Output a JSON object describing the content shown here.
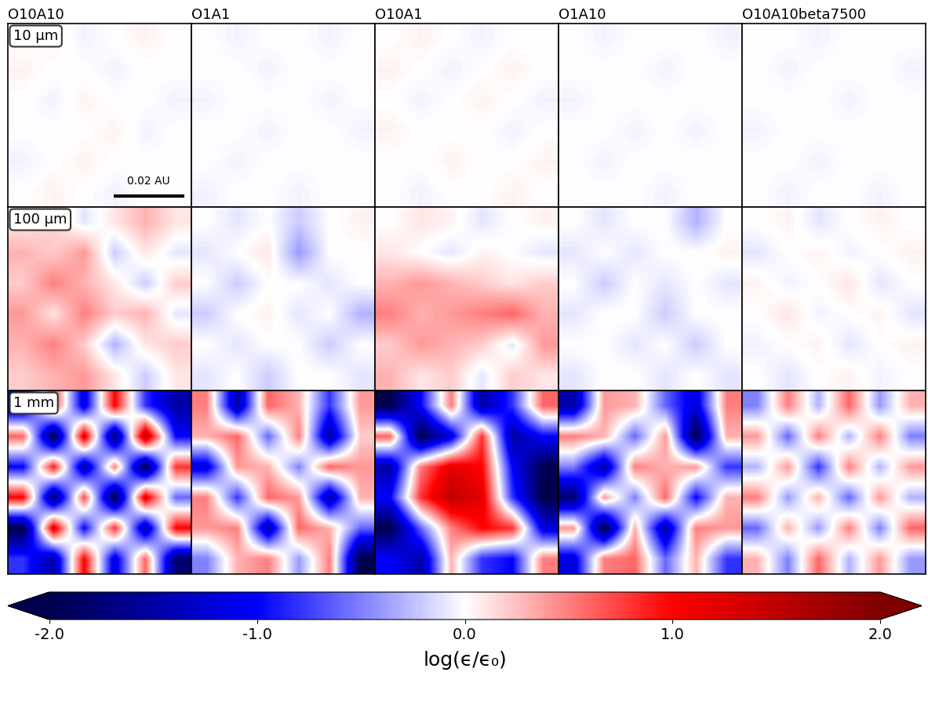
{
  "chart_data": {
    "type": "heatmap_grid",
    "columns": [
      "O10A10",
      "O1A1",
      "O10A1",
      "O1A10",
      "O10A10beta7500"
    ],
    "rows": [
      {
        "label": "10 μm",
        "cells": [
          [
            [
              0,
              0.05,
              -0.05,
              0,
              0.05,
              0
            ],
            [
              0.05,
              0,
              0,
              -0.05,
              0,
              0
            ],
            [
              0,
              -0.05,
              0.05,
              0,
              0,
              -0.05
            ],
            [
              0,
              0,
              0,
              0.05,
              -0.05,
              0
            ],
            [
              -0.05,
              0,
              0.05,
              0,
              0,
              0
            ],
            [
              0,
              0.05,
              0,
              -0.05,
              0,
              0
            ]
          ],
          [
            [
              0,
              -0.05,
              0,
              0,
              -0.05,
              0
            ],
            [
              0,
              0,
              -0.05,
              0,
              0,
              0
            ],
            [
              -0.05,
              0,
              0,
              0,
              -0.05,
              0
            ],
            [
              0,
              0,
              -0.05,
              0,
              0,
              -0.05
            ],
            [
              0,
              -0.05,
              0,
              0,
              0,
              0
            ],
            [
              -0.05,
              0,
              0,
              -0.05,
              0,
              0
            ]
          ],
          [
            [
              0,
              0.05,
              0,
              -0.05,
              0,
              0
            ],
            [
              0.05,
              0,
              -0.05,
              0,
              0.05,
              0
            ],
            [
              0,
              -0.05,
              0,
              0.05,
              0,
              -0.05
            ],
            [
              0.05,
              0,
              0,
              0,
              -0.05,
              0
            ],
            [
              0,
              0,
              0.05,
              0,
              0,
              0.05
            ],
            [
              0,
              -0.05,
              0,
              0,
              0.05,
              0
            ]
          ],
          [
            [
              0,
              -0.05,
              0,
              0,
              0,
              -0.05
            ],
            [
              0,
              0,
              0,
              -0.05,
              0,
              0
            ],
            [
              -0.05,
              0,
              0,
              0,
              0,
              0
            ],
            [
              0,
              0,
              -0.05,
              0,
              -0.05,
              0
            ],
            [
              0,
              -0.05,
              0,
              0,
              0,
              0
            ],
            [
              0,
              0,
              0,
              -0.05,
              0,
              0
            ]
          ],
          [
            [
              0,
              0,
              -0.05,
              0,
              0,
              0
            ],
            [
              0,
              -0.05,
              0,
              0,
              0,
              -0.05
            ],
            [
              0,
              0,
              0,
              -0.05,
              0,
              0
            ],
            [
              -0.05,
              0,
              0,
              0,
              0,
              0
            ],
            [
              0,
              0,
              -0.05,
              0,
              0,
              0
            ],
            [
              0,
              -0.05,
              0,
              0,
              -0.05,
              0
            ]
          ]
        ]
      },
      {
        "label": "100 μm",
        "cells": [
          [
            [
              0.1,
              0.2,
              -0.1,
              0.1,
              0.3,
              0.1
            ],
            [
              0.3,
              0.2,
              0.4,
              -0.2,
              0.1,
              -0.1
            ],
            [
              0.2,
              0.5,
              0.3,
              0.1,
              -0.2,
              0.2
            ],
            [
              0.4,
              0.1,
              0.5,
              0.2,
              0.3,
              -0.1
            ],
            [
              0.3,
              0.5,
              0.2,
              -0.3,
              0.1,
              0.2
            ],
            [
              0.2,
              0.3,
              0.4,
              0.1,
              -0.2,
              0.1
            ]
          ],
          [
            [
              0,
              -0.1,
              0,
              -0.2,
              0,
              0.05
            ],
            [
              -0.1,
              0,
              0.1,
              -0.4,
              0,
              0
            ],
            [
              0,
              -0.2,
              0,
              0,
              -0.1,
              0
            ],
            [
              -0.2,
              0,
              0.05,
              -0.1,
              0,
              -0.3
            ],
            [
              0,
              -0.1,
              0,
              0,
              -0.2,
              0
            ],
            [
              -0.1,
              0,
              -0.2,
              0,
              0,
              -0.1
            ]
          ],
          [
            [
              0,
              0.1,
              0.05,
              -0.1,
              0,
              0.05
            ],
            [
              0.1,
              0,
              -0.1,
              0.05,
              0,
              -0.1
            ],
            [
              0.3,
              0.4,
              0.3,
              0.2,
              0.1,
              0.2
            ],
            [
              0.5,
              0.3,
              0.4,
              0.5,
              0.6,
              0.3
            ],
            [
              0.2,
              0.4,
              0.3,
              0.2,
              -0.1,
              0.4
            ],
            [
              0.3,
              0.1,
              0.2,
              -0.1,
              0.2,
              0.1
            ]
          ],
          [
            [
              0,
              -0.1,
              0,
              0,
              -0.3,
              0
            ],
            [
              -0.1,
              0,
              -0.1,
              0,
              0,
              0.05
            ],
            [
              0,
              -0.2,
              0,
              -0.1,
              0,
              -0.1
            ],
            [
              -0.1,
              0,
              0,
              -0.2,
              0,
              0
            ],
            [
              0,
              0,
              -0.1,
              0,
              -0.2,
              0
            ],
            [
              -0.1,
              0,
              0,
              -0.1,
              0,
              -0.1
            ]
          ],
          [
            [
              0,
              0.05,
              -0.1,
              0,
              0.05,
              0
            ],
            [
              -0.1,
              0,
              0.05,
              -0.05,
              0,
              0.05
            ],
            [
              0.05,
              -0.05,
              0,
              0.1,
              -0.1,
              0
            ],
            [
              0,
              0.1,
              -0.05,
              0,
              0.05,
              -0.1
            ],
            [
              -0.05,
              0,
              0.05,
              -0.1,
              0,
              0.05
            ],
            [
              0,
              -0.1,
              0,
              0.05,
              -0.05,
              0
            ]
          ]
        ]
      },
      {
        "label": "1 mm",
        "cells": [
          [
            [
              -1.5,
              0.8,
              -1.2,
              1.0,
              -0.8,
              -1.5
            ],
            [
              0.6,
              -2.0,
              1.2,
              -1.8,
              1.5,
              -1.0
            ],
            [
              -1.0,
              0.9,
              -1.5,
              0.5,
              -2.0,
              0.8
            ],
            [
              1.0,
              -1.8,
              0.7,
              -2.0,
              1.2,
              -0.6
            ],
            [
              -2.0,
              1.2,
              -1.0,
              0.8,
              -1.5,
              1.0
            ],
            [
              -0.8,
              -1.5,
              1.0,
              -1.2,
              0.6,
              -1.8
            ]
          ],
          [
            [
              0.5,
              -1.5,
              0.6,
              0.3,
              -0.8,
              0.4
            ],
            [
              0.3,
              0.6,
              -0.6,
              0.5,
              -1.5,
              0.2
            ],
            [
              -1.2,
              0.4,
              0.3,
              -0.5,
              0.6,
              0.4
            ],
            [
              0.5,
              -0.8,
              0.6,
              0.4,
              -1.5,
              0.3
            ],
            [
              0.4,
              0.5,
              -1.5,
              0.6,
              0.3,
              -0.6
            ],
            [
              -0.5,
              0.3,
              0.5,
              -0.4,
              0.5,
              -2.0
            ]
          ],
          [
            [
              -2.0,
              -1.0,
              0.5,
              -1.5,
              -0.8,
              0.6
            ],
            [
              0.6,
              -2.0,
              -1.2,
              0.8,
              -1.5,
              -1.0
            ],
            [
              -1.5,
              0.5,
              1.2,
              1.0,
              -1.0,
              -2.0
            ],
            [
              -1.0,
              0.8,
              1.5,
              1.2,
              -0.8,
              -2.0
            ],
            [
              -2.0,
              -0.6,
              0.5,
              1.0,
              0.8,
              -1.2
            ],
            [
              -1.0,
              -1.5,
              0.3,
              -0.8,
              -1.0,
              0.5
            ]
          ],
          [
            [
              -1.5,
              0.4,
              0.3,
              -0.6,
              -1.2,
              0.5
            ],
            [
              0.5,
              0.3,
              -0.6,
              0.4,
              -2.0,
              0.3
            ],
            [
              -0.5,
              -1.5,
              0.5,
              0.3,
              0.4,
              -0.8
            ],
            [
              -1.8,
              0.4,
              -0.5,
              0.6,
              -1.0,
              0.3
            ],
            [
              0.4,
              -2.0,
              0.3,
              -1.5,
              0.5,
              0.4
            ],
            [
              -1.2,
              0.5,
              0.6,
              -0.6,
              0.3,
              -0.8
            ]
          ],
          [
            [
              -0.5,
              0.5,
              -0.3,
              0.6,
              -0.4,
              0.3
            ],
            [
              0.4,
              -0.6,
              0.5,
              -0.3,
              0.5,
              -0.5
            ],
            [
              -0.3,
              0.4,
              -0.8,
              0.5,
              -0.3,
              0.4
            ],
            [
              0.5,
              -0.4,
              0.3,
              -0.6,
              0.4,
              -0.3
            ],
            [
              -0.6,
              0.3,
              -0.4,
              0.5,
              -0.5,
              0.6
            ],
            [
              0.3,
              -0.5,
              0.6,
              -0.3,
              0.4,
              -0.4
            ]
          ]
        ]
      }
    ],
    "xlim": [
      0,
      0.052
    ],
    "ylim": [
      0,
      0.052
    ],
    "scale_bar": {
      "label": "0.02 AU",
      "length": 0.02
    },
    "tick_labels": false,
    "colorbar": {
      "label": "log(ϵ/ϵ₀)",
      "range": [
        -2,
        2
      ],
      "ticks": [
        {
          "value": -2,
          "label": "-2.0"
        },
        {
          "value": -1,
          "label": "-1.0"
        },
        {
          "value": 0,
          "label": "0.0"
        },
        {
          "value": 1,
          "label": "1.0"
        },
        {
          "value": 2,
          "label": "2.0"
        }
      ]
    }
  }
}
